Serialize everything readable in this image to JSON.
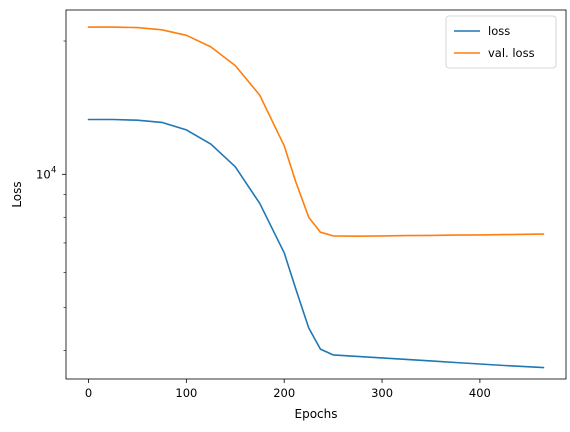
{
  "chart_data": {
    "type": "line",
    "title": "",
    "xlabel": "Epochs",
    "ylabel": "Loss",
    "xlim": [
      -23,
      488
    ],
    "ylim": [
      3450,
      23500
    ],
    "yscale": "log",
    "grid": false,
    "legend_placement": "top-right",
    "x_ticks": [
      0,
      100,
      200,
      300,
      400
    ],
    "x_tick_labels": [
      "0",
      "100",
      "200",
      "300",
      "400"
    ],
    "y_major_ticks": [
      10000
    ],
    "y_major_tick_labels": [
      "10"
    ],
    "y_major_tick_exponent": "4",
    "y_minor_ticks": [
      4000,
      5000,
      6000,
      7000,
      8000,
      9000,
      20000
    ],
    "series": [
      {
        "name": "loss",
        "color": "#1f77b4",
        "x": [
          0,
          25,
          50,
          75,
          100,
          125,
          150,
          175,
          200,
          212,
          225,
          237,
          250,
          275,
          300,
          325,
          350,
          375,
          400,
          425,
          465
        ],
        "y": [
          13300,
          13300,
          13250,
          13100,
          12600,
          11700,
          10400,
          8600,
          6650,
          5500,
          4500,
          4030,
          3910,
          3880,
          3850,
          3820,
          3790,
          3760,
          3730,
          3700,
          3660
        ]
      },
      {
        "name": "val. loss",
        "color": "#ff7f0e",
        "x": [
          0,
          25,
          50,
          75,
          100,
          125,
          150,
          175,
          200,
          212,
          225,
          237,
          250,
          275,
          300,
          325,
          350,
          375,
          400,
          425,
          465
        ],
        "y": [
          21500,
          21500,
          21450,
          21200,
          20600,
          19400,
          17600,
          15100,
          11600,
          9600,
          8000,
          7400,
          7260,
          7250,
          7260,
          7270,
          7280,
          7290,
          7300,
          7310,
          7330
        ]
      }
    ]
  }
}
